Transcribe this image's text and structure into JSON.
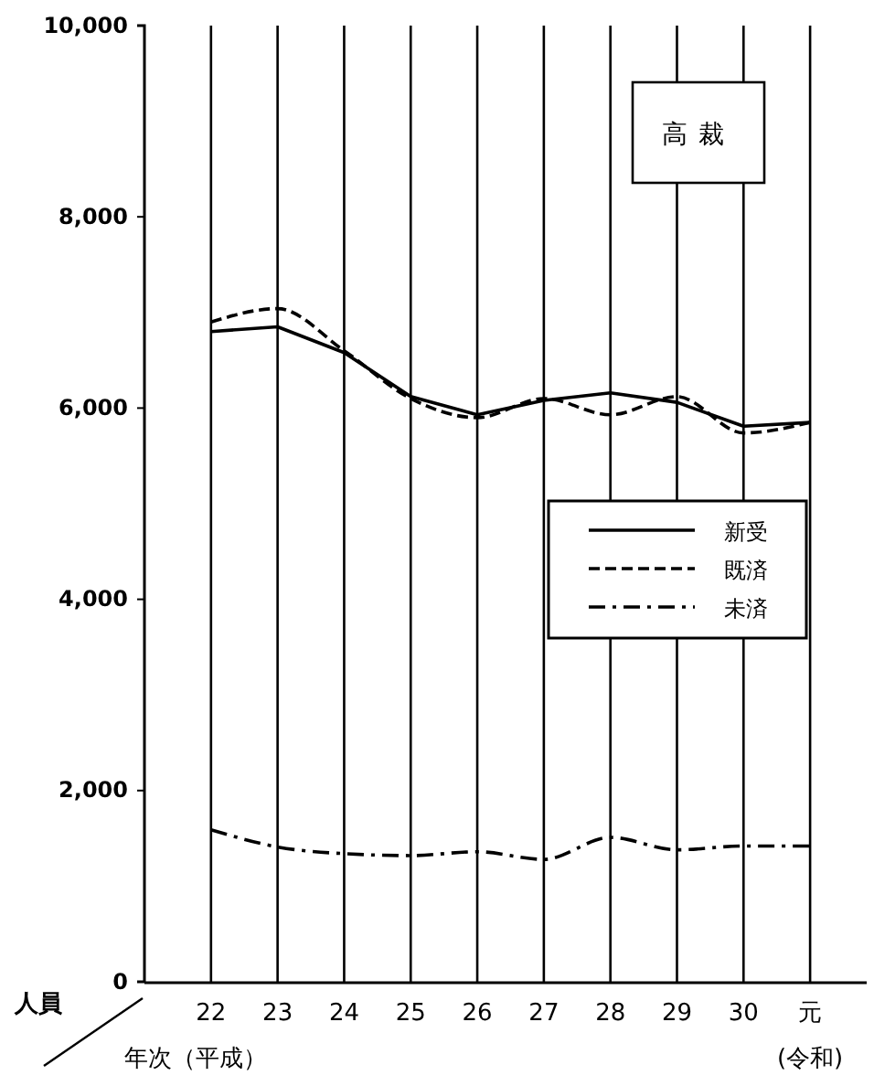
{
  "chart_data": {
    "type": "line",
    "title": "高裁",
    "xlabel": "年次（平成）",
    "ylabel": "人員",
    "categories": [
      "22",
      "23",
      "24",
      "25",
      "26",
      "27",
      "28",
      "29",
      "30",
      "元"
    ],
    "annotations": [
      "(令和)"
    ],
    "series": [
      {
        "name": "新受",
        "color": "#000000",
        "line_style": "solid",
        "values": [
          6800,
          6850,
          6580,
          6120,
          5930,
          6080,
          6160,
          6060,
          5810,
          5850
        ]
      },
      {
        "name": "既済",
        "color": "#000000",
        "line_style": "dashed",
        "values": [
          6900,
          7040,
          6600,
          6100,
          5900,
          6100,
          5930,
          6120,
          5740,
          5850
        ]
      },
      {
        "name": "未済",
        "color": "#000000",
        "line_style": "dotted",
        "values": [
          1590,
          1410,
          1340,
          1320,
          1360,
          1280,
          1510,
          1380,
          1420,
          1420
        ]
      }
    ],
    "ylim": [
      0,
      10000
    ],
    "yticks": [
      {
        "value": 0,
        "label": "0"
      },
      {
        "value": 2000,
        "label": "2,000"
      },
      {
        "value": 4000,
        "label": "4,000"
      },
      {
        "value": 6000,
        "label": "6,000"
      },
      {
        "value": 8000,
        "label": "8,000"
      },
      {
        "value": 10000,
        "label": "10,000"
      }
    ],
    "grid": "x",
    "legend": "right",
    "marker": "none"
  }
}
